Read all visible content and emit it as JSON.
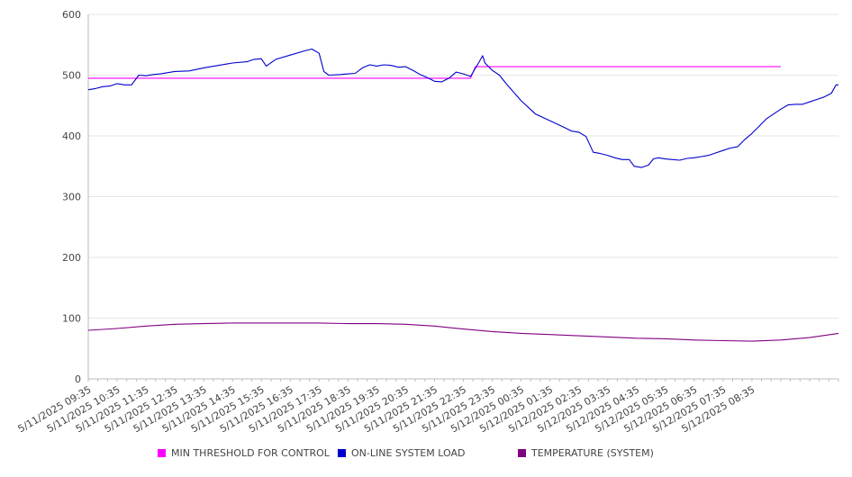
{
  "chart_data": {
    "type": "line",
    "title": "",
    "xlabel": "",
    "ylabel": "",
    "ylim": [
      0,
      600
    ],
    "y_ticks": [
      0,
      100,
      200,
      300,
      400,
      500,
      600
    ],
    "grid": true,
    "legend_position": "bottom",
    "x_tick_labels": [
      "5/11/2025 09:35",
      "5/11/2025 10:35",
      "5/11/2025 11:35",
      "5/11/2025 12:35",
      "5/11/2025 13:35",
      "5/11/2025 14:35",
      "5/11/2025 15:35",
      "5/11/2025 16:35",
      "5/11/2025 17:35",
      "5/11/2025 18:35",
      "5/11/2025 19:35",
      "5/11/2025 20:35",
      "5/11/2025 21:35",
      "5/11/2025 22:35",
      "5/11/2025 23:35",
      "5/12/2025 00:35",
      "5/12/2025 01:35",
      "5/12/2025 02:35",
      "5/12/2025 03:35",
      "5/12/2025 04:35",
      "5/12/2025 05:35",
      "5/12/2025 06:35",
      "5/12/2025 07:35",
      "5/12/2025 08:35"
    ],
    "series": [
      {
        "name": "MIN THRESHOLD FOR CONTROL",
        "color": "#ff00ff",
        "points": [
          [
            "5/11/2025 09:35",
            495
          ],
          [
            "5/11/2025 22:35",
            495
          ],
          [
            "5/11/2025 22:50",
            495
          ],
          [
            "5/11/2025 23:00",
            514
          ],
          [
            "5/12/2025 09:35",
            514
          ]
        ]
      },
      {
        "name": "ON-LINE SYSTEM LOAD",
        "color": "#0000cc",
        "points": [
          [
            "5/11/2025 09:35",
            476
          ],
          [
            "5/11/2025 09:50",
            478
          ],
          [
            "5/11/2025 10:05",
            481
          ],
          [
            "5/11/2025 10:20",
            482
          ],
          [
            "5/11/2025 10:35",
            486
          ],
          [
            "5/11/2025 10:50",
            484
          ],
          [
            "5/11/2025 11:05",
            484
          ],
          [
            "5/11/2025 11:20",
            500
          ],
          [
            "5/11/2025 11:35",
            499
          ],
          [
            "5/11/2025 11:50",
            501
          ],
          [
            "5/11/2025 12:05",
            502
          ],
          [
            "5/11/2025 12:35",
            506
          ],
          [
            "5/11/2025 13:05",
            507
          ],
          [
            "5/11/2025 13:35",
            512
          ],
          [
            "5/11/2025 14:05",
            516
          ],
          [
            "5/11/2025 14:35",
            520
          ],
          [
            "5/11/2025 15:05",
            522
          ],
          [
            "5/11/2025 15:20",
            526
          ],
          [
            "5/11/2025 15:35",
            527
          ],
          [
            "5/11/2025 15:45",
            515
          ],
          [
            "5/11/2025 16:05",
            526
          ],
          [
            "5/11/2025 16:35",
            533
          ],
          [
            "5/11/2025 17:05",
            540
          ],
          [
            "5/11/2025 17:20",
            543
          ],
          [
            "5/11/2025 17:35",
            536
          ],
          [
            "5/11/2025 17:45",
            506
          ],
          [
            "5/11/2025 17:55",
            500
          ],
          [
            "5/11/2025 18:20",
            501
          ],
          [
            "5/11/2025 18:35",
            502
          ],
          [
            "5/11/2025 18:50",
            503
          ],
          [
            "5/11/2025 19:05",
            512
          ],
          [
            "5/11/2025 19:20",
            517
          ],
          [
            "5/11/2025 19:35",
            515
          ],
          [
            "5/11/2025 19:50",
            517
          ],
          [
            "5/11/2025 20:05",
            516
          ],
          [
            "5/11/2025 20:20",
            513
          ],
          [
            "5/11/2025 20:35",
            514
          ],
          [
            "5/11/2025 20:50",
            508
          ],
          [
            "5/11/2025 21:05",
            501
          ],
          [
            "5/11/2025 21:20",
            496
          ],
          [
            "5/11/2025 21:35",
            490
          ],
          [
            "5/11/2025 21:50",
            489
          ],
          [
            "5/11/2025 22:05",
            495
          ],
          [
            "5/11/2025 22:20",
            505
          ],
          [
            "5/11/2025 22:35",
            502
          ],
          [
            "5/11/2025 22:50",
            498
          ],
          [
            "5/11/2025 23:05",
            518
          ],
          [
            "5/11/2025 23:15",
            532
          ],
          [
            "5/11/2025 23:20",
            520
          ],
          [
            "5/11/2025 23:35",
            508
          ],
          [
            "5/11/2025 23:50",
            500
          ],
          [
            "5/12/2025 00:05",
            485
          ],
          [
            "5/12/2025 00:35",
            458
          ],
          [
            "5/12/2025 00:50",
            447
          ],
          [
            "5/12/2025 01:05",
            436
          ],
          [
            "5/12/2025 01:35",
            425
          ],
          [
            "5/12/2025 02:05",
            414
          ],
          [
            "5/12/2025 02:20",
            408
          ],
          [
            "5/12/2025 02:35",
            406
          ],
          [
            "5/12/2025 02:50",
            399
          ],
          [
            "5/12/2025 03:05",
            373
          ],
          [
            "5/12/2025 03:20",
            371
          ],
          [
            "5/12/2025 03:35",
            368
          ],
          [
            "5/12/2025 03:50",
            364
          ],
          [
            "5/12/2025 04:05",
            361
          ],
          [
            "5/12/2025 04:20",
            361
          ],
          [
            "5/12/2025 04:30",
            350
          ],
          [
            "5/12/2025 04:45",
            348
          ],
          [
            "5/12/2025 05:00",
            352
          ],
          [
            "5/12/2025 05:10",
            362
          ],
          [
            "5/12/2025 05:20",
            364
          ],
          [
            "5/12/2025 05:35",
            362
          ],
          [
            "5/12/2025 05:50",
            361
          ],
          [
            "5/12/2025 06:05",
            360
          ],
          [
            "5/12/2025 06:20",
            363
          ],
          [
            "5/12/2025 06:35",
            364
          ],
          [
            "5/12/2025 06:50",
            366
          ],
          [
            "5/12/2025 07:05",
            368
          ],
          [
            "5/12/2025 07:20",
            372
          ],
          [
            "5/12/2025 07:35",
            376
          ],
          [
            "5/12/2025 07:50",
            380
          ],
          [
            "5/12/2025 08:05",
            382
          ],
          [
            "5/12/2025 08:20",
            394
          ],
          [
            "5/12/2025 08:35",
            404
          ],
          [
            "5/12/2025 08:50",
            416
          ],
          [
            "5/12/2025 09:05",
            428
          ],
          [
            "5/12/2025 09:20",
            436
          ],
          [
            "5/12/2025 09:35",
            444
          ],
          [
            "5/12/2025 09:50",
            451
          ],
          [
            "5/12/2025 10:05",
            452
          ],
          [
            "5/12/2025 10:20",
            452
          ],
          [
            "5/12/2025 10:35",
            456
          ],
          [
            "5/12/2025 10:50",
            460
          ],
          [
            "5/12/2025 11:05",
            464
          ],
          [
            "5/12/2025 11:20",
            470
          ],
          [
            "5/12/2025 11:30",
            484
          ],
          [
            "5/12/2025 11:35",
            484
          ]
        ]
      },
      {
        "name": "TEMPERATURE (SYSTEM)",
        "color": "#800080",
        "points": [
          [
            "5/11/2025 09:35",
            80
          ],
          [
            "5/11/2025 10:35",
            83
          ],
          [
            "5/11/2025 11:35",
            87
          ],
          [
            "5/11/2025 12:35",
            90
          ],
          [
            "5/11/2025 13:35",
            91
          ],
          [
            "5/11/2025 14:35",
            92
          ],
          [
            "5/11/2025 15:35",
            92
          ],
          [
            "5/11/2025 16:35",
            92
          ],
          [
            "5/11/2025 17:35",
            92
          ],
          [
            "5/11/2025 18:35",
            91
          ],
          [
            "5/11/2025 19:35",
            91
          ],
          [
            "5/11/2025 20:35",
            90
          ],
          [
            "5/11/2025 21:35",
            87
          ],
          [
            "5/11/2025 22:35",
            82
          ],
          [
            "5/11/2025 23:35",
            78
          ],
          [
            "5/12/2025 00:35",
            75
          ],
          [
            "5/12/2025 01:35",
            73
          ],
          [
            "5/12/2025 02:35",
            71
          ],
          [
            "5/12/2025 03:35",
            69
          ],
          [
            "5/12/2025 04:35",
            67
          ],
          [
            "5/12/2025 05:35",
            66
          ],
          [
            "5/12/2025 06:35",
            64
          ],
          [
            "5/12/2025 07:35",
            63
          ],
          [
            "5/12/2025 08:35",
            62
          ],
          [
            "5/12/2025 09:35",
            64
          ],
          [
            "5/12/2025 10:35",
            68
          ],
          [
            "5/12/2025 11:35",
            75
          ]
        ]
      }
    ]
  }
}
